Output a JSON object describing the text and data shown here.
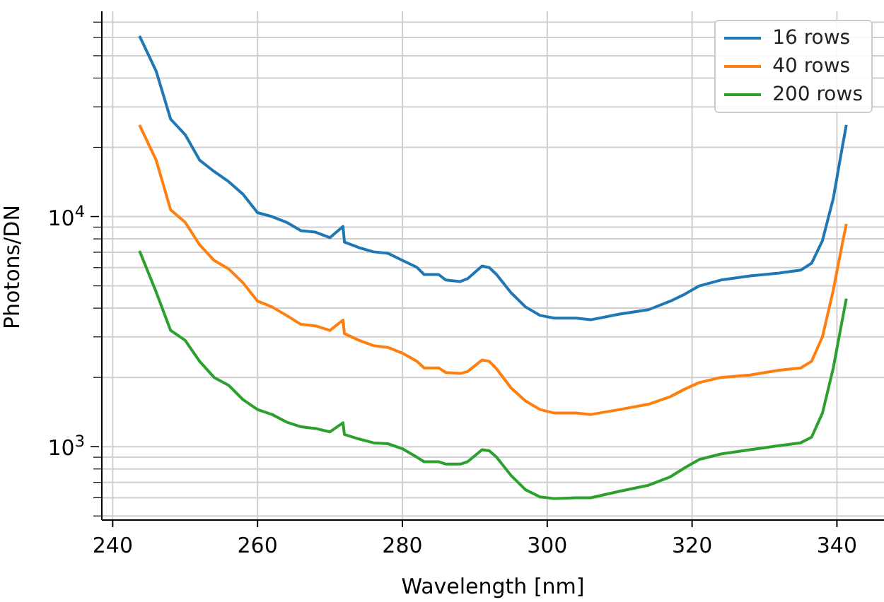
{
  "chart_data": {
    "type": "line",
    "xlabel": "Wavelength [nm]",
    "ylabel": "Photons/DN",
    "log": "y",
    "grid": true,
    "legend": "top right",
    "line_style": "solid",
    "xlim": [
      238.5,
      346.5
    ],
    "xticks": [
      240,
      260,
      280,
      300,
      320,
      340
    ],
    "ylim": [
      480,
      78000
    ],
    "yticks": [
      {
        "value": 500,
        "label": null
      },
      {
        "value": 600,
        "label": null
      },
      {
        "value": 700,
        "label": null
      },
      {
        "value": 800,
        "label": null
      },
      {
        "value": 900,
        "label": null
      },
      {
        "value": 1000,
        "label": "10$^{3}$"
      },
      {
        "value": 2000,
        "label": null
      },
      {
        "value": 3000,
        "label": null
      },
      {
        "value": 4000,
        "label": null
      },
      {
        "value": 5000,
        "label": null
      },
      {
        "value": 6000,
        "label": null
      },
      {
        "value": 7000,
        "label": null
      },
      {
        "value": 8000,
        "label": null
      },
      {
        "value": 9000,
        "label": null
      },
      {
        "value": 10000,
        "label": "10$^{4}$"
      },
      {
        "value": 20000,
        "label": null
      },
      {
        "value": 30000,
        "label": null
      },
      {
        "value": 40000,
        "label": null
      },
      {
        "value": 50000,
        "label": null
      },
      {
        "value": 60000,
        "label": null
      },
      {
        "value": 70000,
        "label": null
      }
    ],
    "x": [
      243.7,
      246,
      248,
      250,
      252,
      254,
      256,
      258,
      260,
      262,
      264,
      266,
      268,
      270,
      271.8,
      272,
      274,
      276,
      278,
      280,
      282,
      283,
      285,
      286,
      288,
      289,
      291,
      292,
      293,
      295,
      297,
      299,
      301,
      304,
      306,
      310,
      314,
      317,
      319,
      321,
      324,
      328,
      332,
      335,
      336.5,
      338,
      339.5,
      340.7,
      341.3
    ],
    "series": [
      {
        "name": "16 rows",
        "color": "#1f77b4",
        "values": [
          61000,
          42900,
          26500,
          22700,
          17600,
          15700,
          14200,
          12500,
          10400,
          10000,
          9450,
          8680,
          8560,
          8100,
          9060,
          7750,
          7330,
          7030,
          6930,
          6450,
          6020,
          5600,
          5600,
          5300,
          5220,
          5370,
          6100,
          6000,
          5600,
          4670,
          4050,
          3720,
          3620,
          3620,
          3560,
          3770,
          3940,
          4290,
          4600,
          5000,
          5300,
          5520,
          5680,
          5850,
          6270,
          7860,
          12000,
          19700,
          25000
        ]
      },
      {
        "name": "40 rows",
        "color": "#ff7f0e",
        "values": [
          25000,
          17600,
          10700,
          9450,
          7540,
          6450,
          5930,
          5150,
          4290,
          4050,
          3720,
          3400,
          3350,
          3200,
          3550,
          3100,
          2900,
          2750,
          2700,
          2550,
          2350,
          2200,
          2200,
          2100,
          2080,
          2120,
          2380,
          2350,
          2180,
          1800,
          1580,
          1450,
          1400,
          1400,
          1380,
          1450,
          1530,
          1650,
          1780,
          1900,
          2000,
          2050,
          2150,
          2200,
          2350,
          3000,
          4800,
          7500,
          9300
        ]
      },
      {
        "name": "200 rows",
        "color": "#2ca02c",
        "values": [
          7100,
          4700,
          3200,
          2900,
          2350,
          2000,
          1850,
          1600,
          1450,
          1380,
          1280,
          1220,
          1200,
          1160,
          1270,
          1130,
          1080,
          1040,
          1030,
          980,
          900,
          860,
          860,
          840,
          840,
          860,
          970,
          960,
          900,
          750,
          650,
          605,
          595,
          600,
          600,
          640,
          680,
          740,
          810,
          880,
          930,
          970,
          1010,
          1040,
          1100,
          1400,
          2200,
          3500,
          4400
        ]
      }
    ]
  }
}
